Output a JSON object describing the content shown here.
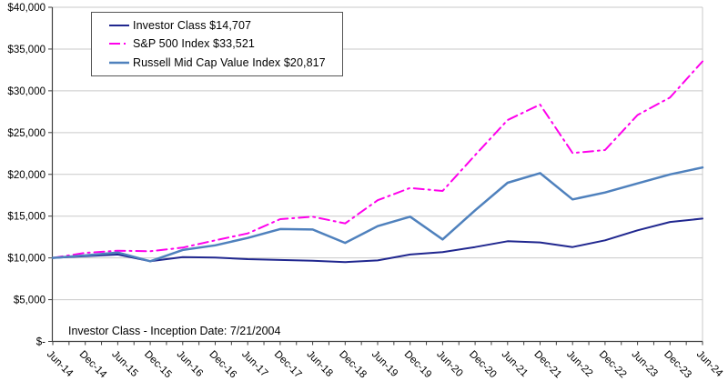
{
  "window": {
    "background": "#ffffff"
  },
  "annotation": {
    "text": "Investor Class - Inception Date: 7/21/2004"
  },
  "chart_data": {
    "type": "line",
    "title": "",
    "xlabel": "",
    "ylabel": "",
    "ylim": [
      0,
      40000
    ],
    "grid": "horizontal",
    "legend_position": "top-left-inside",
    "colors": {
      "gridline": "#c9c9c9",
      "axis": "#3f3f3f",
      "frame": "#c9c9c9",
      "text": "#000000",
      "background": "#ffffff"
    },
    "x_tick_labels": [
      "Jun-14",
      "Dec-14",
      "Jun-15",
      "Dec-15",
      "Jun-16",
      "Dec-16",
      "Jun-17",
      "Dec-17",
      "Jun-18",
      "Dec-18",
      "Jun-19",
      "Dec-19",
      "Jun-20",
      "Dec-20",
      "Jun-21",
      "Dec-21",
      "Jun-22",
      "Dec-22",
      "Jun-23",
      "Dec-23",
      "Jun-24"
    ],
    "y_ticks": [
      {
        "label": "$-",
        "value": 0
      },
      {
        "label": "$5,000",
        "value": 5000
      },
      {
        "label": "$10,000",
        "value": 10000
      },
      {
        "label": "$15,000",
        "value": 15000
      },
      {
        "label": "$20,000",
        "value": 20000
      },
      {
        "label": "$25,000",
        "value": 25000
      },
      {
        "label": "$30,000",
        "value": 30000
      },
      {
        "label": "$35,000",
        "value": 35000
      },
      {
        "label": "$40,000",
        "value": 40000
      }
    ],
    "series": [
      {
        "name": "Investor Class",
        "label": "Investor Class $14,707",
        "final_value": 14707,
        "color": "#20278f",
        "style": "solid",
        "stroke_width": 2,
        "values": [
          10000,
          10200,
          10400,
          9600,
          10100,
          10050,
          9850,
          9750,
          9650,
          9500,
          9700,
          10400,
          10700,
          11300,
          12000,
          11850,
          11300,
          12100,
          13300,
          14300,
          14707
        ]
      },
      {
        "name": "S&P 500 Index",
        "label": "S&P 500 Index $33,521",
        "final_value": 33521,
        "color": "#ff00ec",
        "style": "dash-dot",
        "stroke_width": 2,
        "values": [
          10000,
          10600,
          10860,
          10800,
          11230,
          12100,
          12930,
          14640,
          14930,
          14130,
          16900,
          18370,
          18010,
          22300,
          26500,
          28350,
          22550,
          22910,
          27100,
          29200,
          33521
        ]
      },
      {
        "name": "Russell Mid Cap Value Index",
        "label": "Russell Mid Cap Value Index $20,817",
        "final_value": 20817,
        "color": "#4f81bd",
        "style": "solid",
        "stroke_width": 2.5,
        "values": [
          10000,
          10300,
          10650,
          9600,
          10950,
          11500,
          12390,
          13450,
          13400,
          11800,
          13800,
          14930,
          12210,
          15700,
          18990,
          20150,
          17000,
          17830,
          18920,
          20000,
          20817
        ]
      }
    ]
  }
}
